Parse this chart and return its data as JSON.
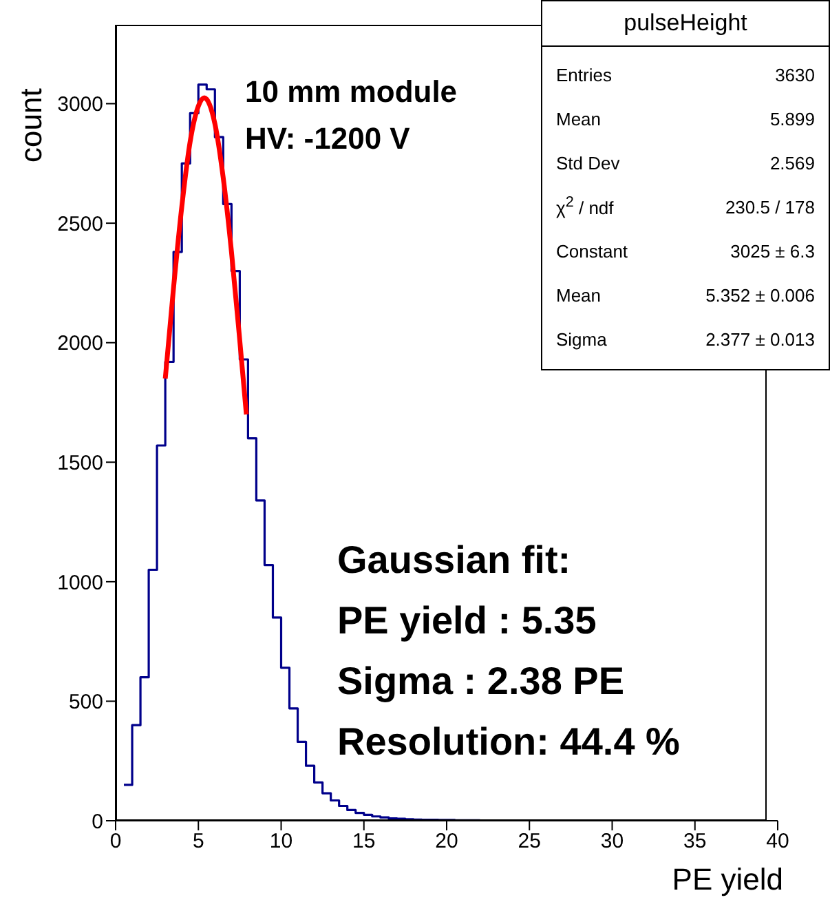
{
  "chart_data": {
    "type": "histogram",
    "xlabel": "PE yield",
    "ylabel": "count",
    "bins": [
      0.5,
      1,
      1.5,
      2,
      2.5,
      3,
      3.5,
      4,
      4.5,
      5,
      5.5,
      6,
      6.5,
      7,
      7.5,
      8,
      8.5,
      9,
      9.5,
      10,
      10.5,
      11,
      11.5,
      12,
      12.5,
      13,
      13.5,
      14,
      14.5,
      15,
      15.5,
      16,
      16.5,
      17,
      17.5,
      18,
      18.5,
      19,
      19.5,
      20,
      20.5,
      21,
      21.5,
      22,
      22.5,
      23,
      23.5,
      24,
      24.5,
      25
    ],
    "values": [
      150,
      400,
      600,
      1050,
      1570,
      1920,
      2380,
      2750,
      2960,
      3080,
      3060,
      2860,
      2580,
      2300,
      1930,
      1600,
      1340,
      1070,
      850,
      640,
      470,
      330,
      230,
      160,
      115,
      85,
      62,
      45,
      33,
      25,
      18,
      14,
      10,
      8,
      6,
      5,
      4,
      4,
      3,
      3,
      2,
      2,
      2,
      1,
      1,
      1,
      1,
      1,
      1
    ],
    "color": "#00008b",
    "series": [
      {
        "type": "line",
        "color": "#ff0000",
        "x": [
          3,
          3.5,
          4,
          4.5,
          5,
          5.35,
          6,
          6.5,
          7,
          7.5,
          7.9
        ],
        "values": [
          1850,
          2230,
          2570,
          2840,
          2990,
          3025,
          2915,
          2690,
          2380,
          2010,
          1700
        ]
      }
    ],
    "xlim": [
      0,
      40
    ],
    "xticks": [
      0,
      5,
      10,
      15,
      20,
      25,
      30,
      35,
      40
    ],
    "ylim": [
      0,
      3330
    ],
    "yticks": [
      0,
      500,
      1000,
      1500,
      2000,
      2500,
      3000
    ],
    "grid": false,
    "legend": false,
    "marker": "none",
    "line_style": "solid",
    "annotations": [
      "10 mm module",
      "HV: -1200 V",
      "pulseHeight",
      "Entries",
      "3630",
      "Mean",
      "5.899",
      "Std Dev",
      "2.569",
      "χ$^{2}$ / ndf",
      "230.5 / 178",
      "Constant",
      "3025 ± 6.3",
      "Mean",
      "5.352 ± 0.006",
      "Sigma",
      "2.377 ± 0.013",
      "Gaussian fit:",
      "PE yield : 5.35",
      "Sigma : 2.38 PE",
      "Resolution: 44.4 %"
    ]
  }
}
